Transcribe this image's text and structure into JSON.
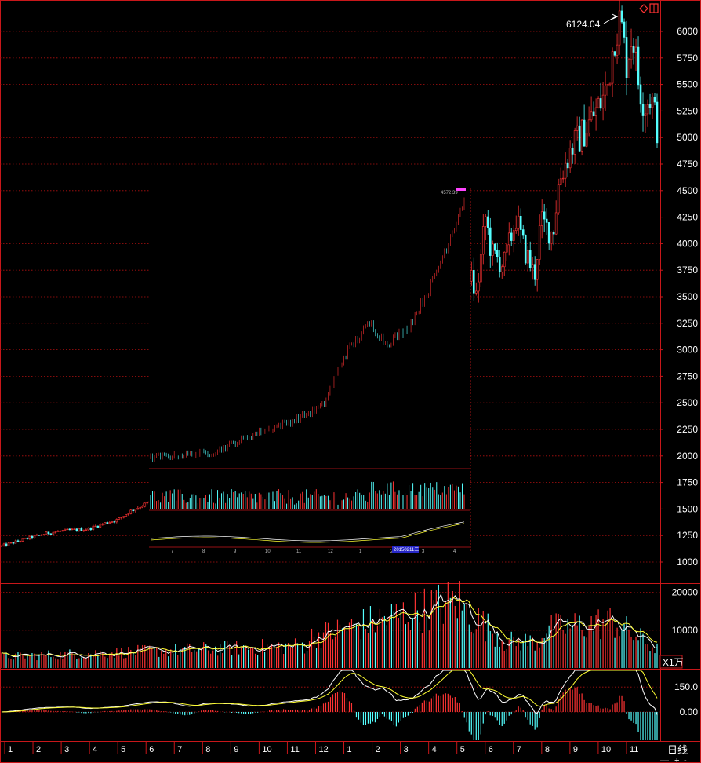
{
  "chart_data": {
    "type": "candlestick",
    "main_panel": {
      "y_ticks": [
        6000,
        5750,
        5500,
        5250,
        5000,
        4750,
        4500,
        4250,
        4000,
        3750,
        3500,
        3250,
        3000,
        2750,
        2500,
        2250,
        2000,
        1750,
        1500,
        1250,
        1000
      ],
      "ylim": [
        900,
        6150
      ],
      "peak_annotation": "6124.04",
      "peak_value": 6124.04,
      "grid": "horizontal-dotted",
      "price_path": [
        [
          0,
          1150
        ],
        [
          0.04,
          1220
        ],
        [
          0.08,
          1280
        ],
        [
          0.11,
          1300
        ],
        [
          0.14,
          1310
        ],
        [
          0.17,
          1370
        ],
        [
          0.19,
          1400
        ],
        [
          0.21,
          1480
        ],
        [
          0.24,
          1560
        ],
        [
          0.27,
          1600
        ],
        [
          0.3,
          1570
        ],
        [
          0.33,
          1720
        ],
        [
          0.36,
          1750
        ],
        [
          0.4,
          1760
        ],
        [
          0.43,
          1850
        ],
        [
          0.46,
          1970
        ],
        [
          0.49,
          2050
        ],
        [
          0.51,
          2150
        ],
        [
          0.53,
          2450
        ],
        [
          0.54,
          2750
        ],
        [
          0.55,
          2900
        ],
        [
          0.57,
          3000
        ],
        [
          0.58,
          2750
        ],
        [
          0.6,
          2850
        ],
        [
          0.62,
          3000
        ],
        [
          0.64,
          2800
        ],
        [
          0.66,
          3000
        ],
        [
          0.68,
          3200
        ],
        [
          0.7,
          3500
        ],
        [
          0.715,
          3800
        ],
        [
          0.73,
          4100
        ],
        [
          0.745,
          4200
        ],
        [
          0.76,
          3800
        ],
        [
          0.775,
          3500
        ],
        [
          0.79,
          4250
        ],
        [
          0.8,
          3900
        ],
        [
          0.82,
          3800
        ],
        [
          0.84,
          4250
        ],
        [
          0.85,
          4000
        ],
        [
          0.87,
          3700
        ],
        [
          0.88,
          4200
        ],
        [
          0.9,
          4100
        ],
        [
          0.91,
          4600
        ],
        [
          0.93,
          4900
        ],
        [
          0.95,
          5050
        ],
        [
          0.965,
          5200
        ],
        [
          0.98,
          5350
        ],
        [
          0.99,
          5500
        ],
        [
          1.0,
          5950
        ],
        [
          1.01,
          6124
        ],
        [
          1.02,
          5700
        ],
        [
          1.03,
          6000
        ],
        [
          1.04,
          5500
        ],
        [
          1.05,
          5300
        ],
        [
          1.06,
          5400
        ],
        [
          1.07,
          5100
        ]
      ]
    },
    "inset_panel": {
      "x_ticks": [
        "7",
        "8",
        "9",
        "10",
        "11",
        "12",
        "1",
        "2",
        "3",
        "4"
      ],
      "max_label": "4572.39",
      "date_label": "20150211三"
    },
    "volume_panel": {
      "y_ticks": [
        20000,
        10000
      ],
      "unit_label": "X1万",
      "ylim": [
        0,
        22000
      ]
    },
    "macd_panel": {
      "y_ticks": [
        "150.0",
        "0.00"
      ],
      "ylim": [
        -170,
        250
      ]
    },
    "x_axis": {
      "month_labels": [
        "1",
        "2",
        "3",
        "4",
        "5",
        "6",
        "7",
        "8",
        "9",
        "10",
        "11",
        "12",
        "1",
        "2",
        "3",
        "4",
        "5",
        "6",
        "7",
        "8",
        "9",
        "10",
        "11"
      ],
      "period_label": "日线"
    },
    "colors": {
      "up": "#ff3333",
      "down": "#54ffff",
      "axis": "#c8171a",
      "grid": "#b01010",
      "ma_white": "#ffffff",
      "ma_yellow": "#ffff33",
      "ma_magenta": "#ff44ff"
    }
  }
}
